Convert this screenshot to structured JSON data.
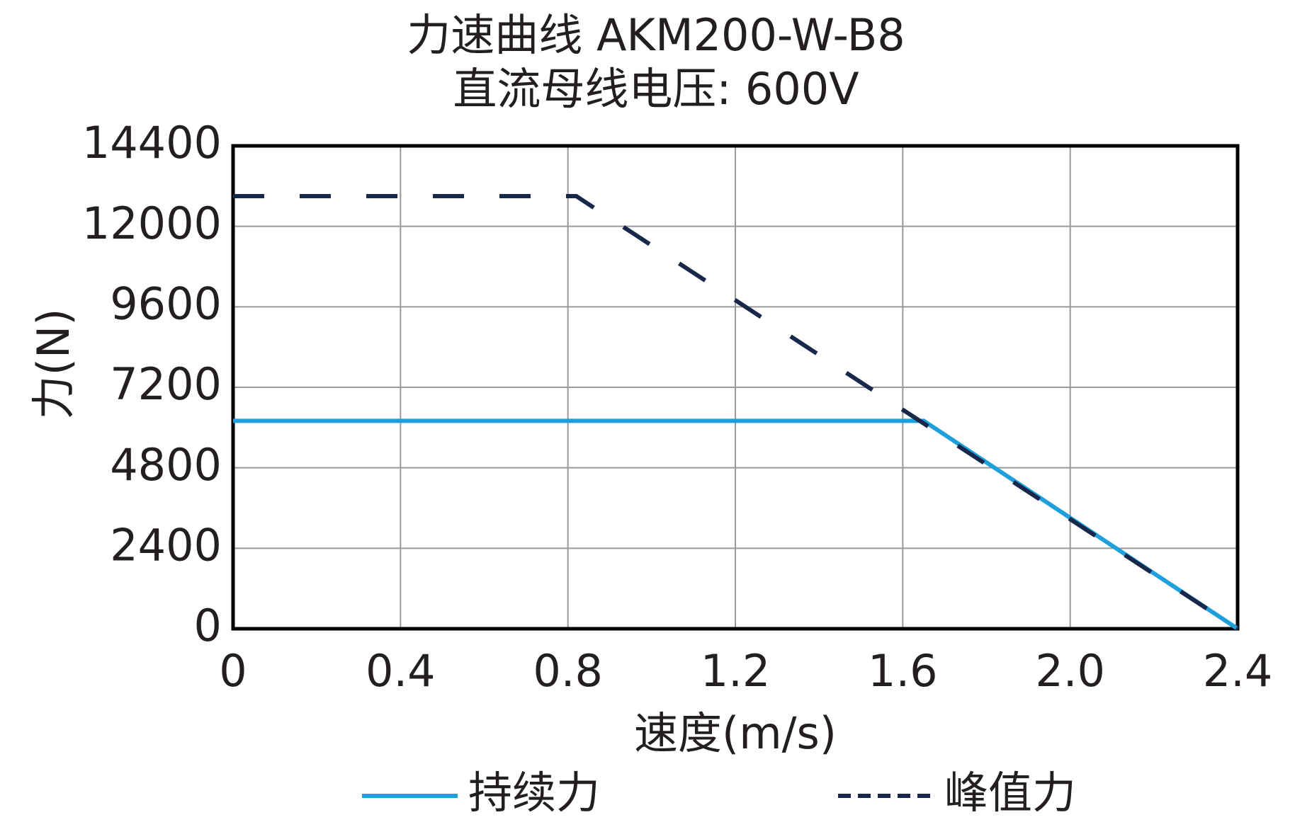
{
  "chart_data": {
    "type": "line",
    "title": "力速曲线 AKM200-W-B8",
    "subtitle": "直流母线电压: 600V",
    "x_label": "速度(m/s)",
    "y_label": "力(N)",
    "xlim": [
      0,
      2.4
    ],
    "xticks": [
      0,
      0.4,
      0.8,
      1.2,
      1.6,
      {
        "value": 2,
        "label": "2.0"
      },
      2.4
    ],
    "ylim": [
      0,
      14400
    ],
    "yticks": [
      0,
      2400,
      4800,
      7200,
      9600,
      12000,
      14400
    ],
    "grid": true,
    "legend": "bottom",
    "series": [
      {
        "name": "持续力",
        "color": "#1fa0dc",
        "dash": false,
        "x": [
          0,
          1.65,
          2.4
        ],
        "values": [
          6200,
          6200,
          0
        ]
      },
      {
        "name": "峰值力",
        "color": "#17284a",
        "dash": true,
        "x": [
          0,
          0.82,
          2.4
        ],
        "values": [
          12900,
          12900,
          0
        ]
      }
    ]
  }
}
